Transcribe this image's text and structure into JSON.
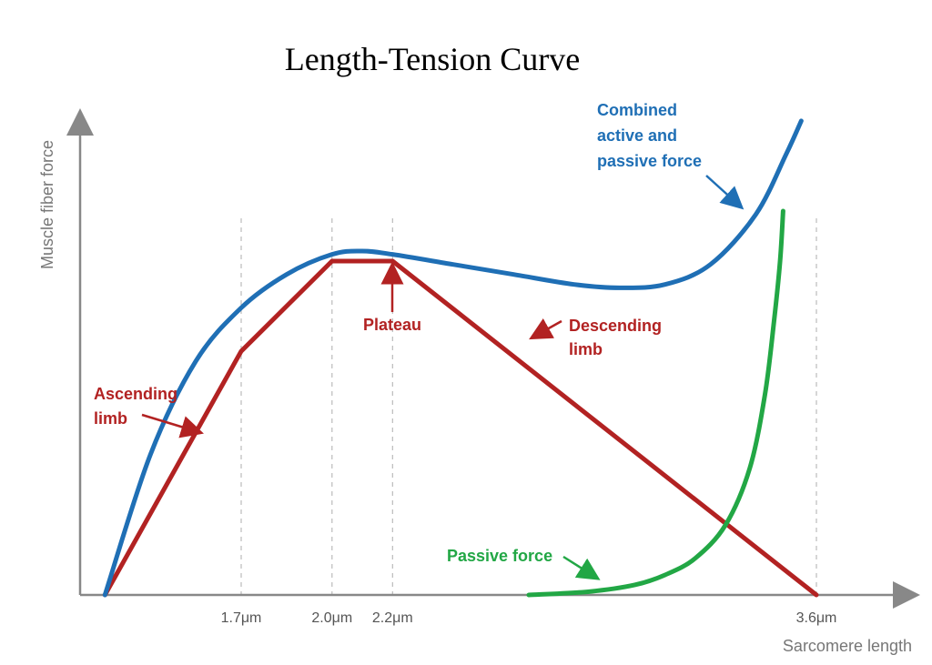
{
  "chart_data": {
    "type": "line",
    "title": "Length-Tension Curve",
    "xlabel": "Sarcomere length",
    "ylabel": "Muscle fiber force",
    "x_ticks": [
      {
        "value": 1.7,
        "label": "1.7μm"
      },
      {
        "value": 2.0,
        "label": "2.0μm"
      },
      {
        "value": 2.2,
        "label": "2.2μm"
      },
      {
        "value": 3.6,
        "label": "3.6μm"
      }
    ],
    "xlim": [
      1.0,
      3.85
    ],
    "ylim": [
      0,
      1.45
    ],
    "grid": "vertical dashed at tick positions",
    "series": [
      {
        "color": "#b22222",
        "points": [
          [
            1.25,
            0
          ],
          [
            1.7,
            0.73
          ],
          [
            2.0,
            1.0
          ],
          [
            2.2,
            1.0
          ],
          [
            3.6,
            0
          ]
        ]
      },
      {
        "color": "#1f6fb5",
        "points": [
          [
            1.25,
            0
          ],
          [
            1.4,
            0.42
          ],
          [
            1.55,
            0.7
          ],
          [
            1.7,
            0.86
          ],
          [
            1.85,
            0.96
          ],
          [
            2.0,
            1.02
          ],
          [
            2.1,
            1.03
          ],
          [
            2.2,
            1.02
          ],
          [
            2.4,
            0.99
          ],
          [
            2.6,
            0.96
          ],
          [
            2.8,
            0.93
          ],
          [
            2.95,
            0.92
          ],
          [
            3.1,
            0.93
          ],
          [
            3.25,
            0.99
          ],
          [
            3.4,
            1.14
          ],
          [
            3.5,
            1.32
          ],
          [
            3.55,
            1.42
          ]
        ]
      },
      {
        "color": "#22a745",
        "points": [
          [
            2.65,
            0
          ],
          [
            2.85,
            0.01
          ],
          [
            3.0,
            0.03
          ],
          [
            3.1,
            0.06
          ],
          [
            3.2,
            0.11
          ],
          [
            3.3,
            0.21
          ],
          [
            3.38,
            0.38
          ],
          [
            3.43,
            0.6
          ],
          [
            3.46,
            0.82
          ],
          [
            3.48,
            1.0
          ],
          [
            3.49,
            1.15
          ]
        ]
      }
    ],
    "annotations": [
      {
        "text_lines": [
          "Ascending",
          "limb"
        ],
        "color": "#b22222"
      },
      {
        "text_lines": [
          "Plateau"
        ],
        "color": "#b22222"
      },
      {
        "text_lines": [
          "Descending",
          "limb"
        ],
        "color": "#b22222"
      },
      {
        "text_lines": [
          "Combined",
          "active and",
          "passive force"
        ],
        "color": "#1f6fb5"
      },
      {
        "text_lines": [
          "Passive force"
        ],
        "color": "#22a745"
      }
    ]
  }
}
